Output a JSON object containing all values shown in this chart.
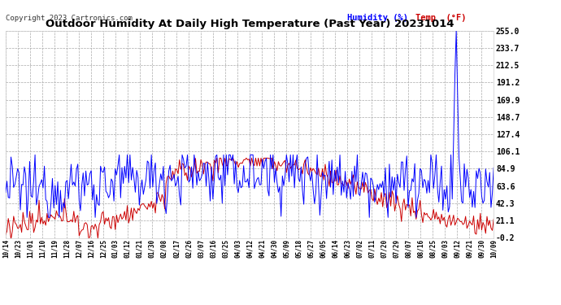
{
  "title": "Outdoor Humidity At Daily High Temperature (Past Year) 20231014",
  "copyright": "Copyright 2023 Cartronics.com",
  "legend_humidity": "Humidity (%)",
  "legend_temp": "Temp  (°F)",
  "bg_color": "#ffffff",
  "plot_bg_color": "#ffffff",
  "grid_color": "#aaaaaa",
  "title_color": "#000000",
  "label_color": "#000000",
  "humidity_color": "#0000ff",
  "temp_color": "#cc0000",
  "yticks": [
    255.0,
    233.7,
    212.5,
    191.2,
    169.9,
    148.7,
    127.4,
    106.1,
    84.9,
    63.6,
    42.3,
    21.1,
    -0.2
  ],
  "ymin": -0.2,
  "ymax": 255.0,
  "xtick_labels": [
    "10/14",
    "10/23",
    "11/01",
    "11/10",
    "11/19",
    "11/28",
    "12/07",
    "12/16",
    "12/25",
    "01/03",
    "01/12",
    "01/21",
    "01/30",
    "02/08",
    "02/17",
    "02/26",
    "03/07",
    "03/16",
    "03/25",
    "04/03",
    "04/12",
    "04/21",
    "04/30",
    "05/09",
    "05/18",
    "05/27",
    "06/05",
    "06/14",
    "06/23",
    "07/02",
    "07/11",
    "07/20",
    "07/29",
    "08/07",
    "08/16",
    "08/25",
    "09/03",
    "09/12",
    "09/21",
    "09/30",
    "10/09"
  ],
  "n_points": 366,
  "spike_day": 337
}
